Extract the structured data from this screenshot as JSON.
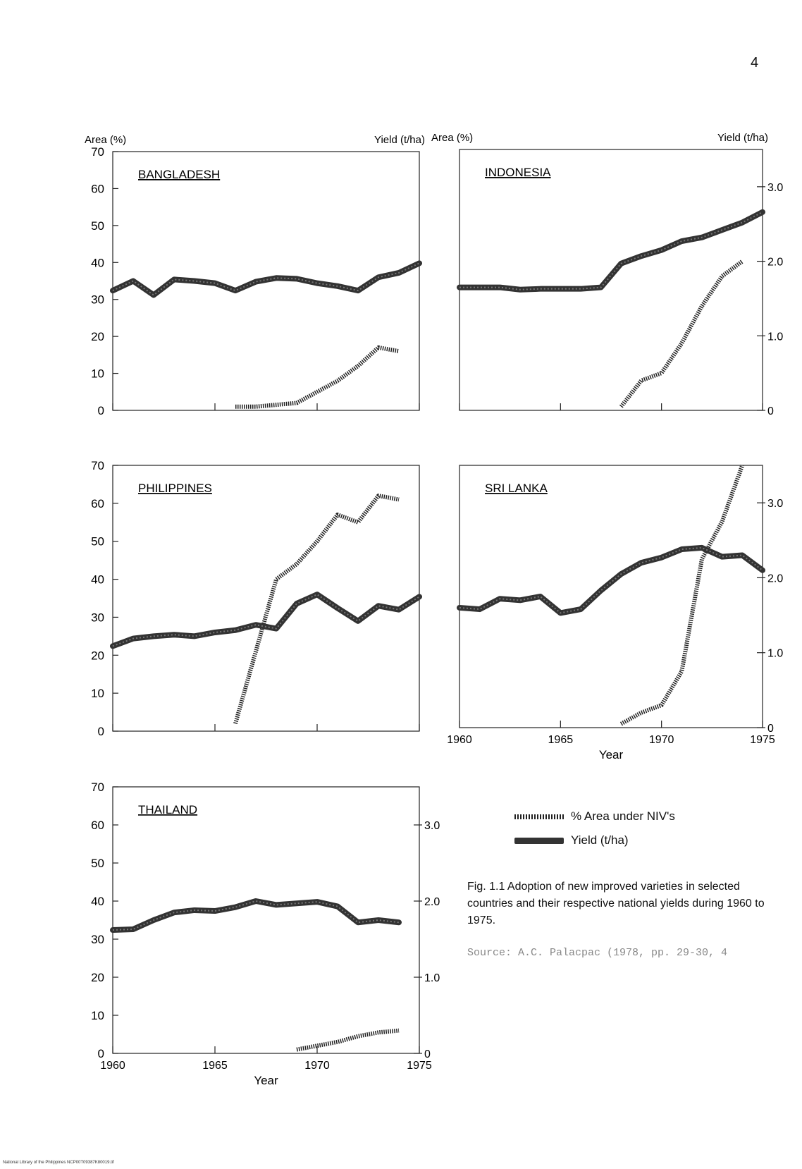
{
  "page_number": "4",
  "legend": {
    "area_label": "% Area under NIV's",
    "yield_label": "Yield (t/ha)"
  },
  "caption": "Fig. 1.1 Adoption of new improved varieties in selected countries and their respective national yields during 1960 to 1975.",
  "source": "Source: A.C. Palacpac (1978, pp. 29-30, 4",
  "footer": "National Library of the Philippines    NCP00T09387K80019.tif",
  "chart_data": [
    {
      "type": "line",
      "title": "BANGLADESH",
      "left_axis_title": "Area (%)",
      "right_axis_title": "Yield (t/ha)",
      "xlim": [
        1960,
        1975
      ],
      "ylim_left": [
        0,
        70
      ],
      "ylim_right": [
        0,
        3.5
      ],
      "left_ticks": [
        0,
        10,
        20,
        30,
        40,
        50,
        60,
        70
      ],
      "right_ticks": [],
      "x_tick_labels": [],
      "xlabel": "",
      "series": [
        {
          "name": "% Area under NIV's",
          "axis": "left",
          "style": "area",
          "x": [
            1966,
            1967,
            1968,
            1969,
            1970,
            1971,
            1972,
            1973,
            1974
          ],
          "y": [
            1,
            1,
            1.5,
            2,
            5,
            8,
            12,
            17,
            16
          ]
        },
        {
          "name": "Yield (t/ha)",
          "axis": "right",
          "style": "yield",
          "x": [
            1960,
            1961,
            1962,
            1963,
            1964,
            1965,
            1966,
            1967,
            1968,
            1969,
            1970,
            1971,
            1972,
            1973,
            1974,
            1975
          ],
          "y": [
            1.62,
            1.75,
            1.56,
            1.77,
            1.75,
            1.72,
            1.62,
            1.74,
            1.79,
            1.78,
            1.72,
            1.68,
            1.62,
            1.8,
            1.86,
            1.99
          ]
        }
      ]
    },
    {
      "type": "line",
      "title": "INDONESIA",
      "left_axis_title": "Area (%)",
      "right_axis_title": "Yield (t/ha)",
      "xlim": [
        1960,
        1975
      ],
      "ylim_left": [
        0,
        70
      ],
      "ylim_right": [
        0,
        3.5
      ],
      "left_ticks": [],
      "right_ticks": [
        0,
        1.0,
        2.0,
        3.0
      ],
      "x_tick_labels": [],
      "xlabel": "",
      "series": [
        {
          "name": "% Area under NIV's",
          "axis": "left",
          "style": "area",
          "x": [
            1968,
            1969,
            1970,
            1971,
            1972,
            1973,
            1974
          ],
          "y": [
            1,
            8,
            10,
            18,
            28,
            36,
            40
          ]
        },
        {
          "name": "Yield (t/ha)",
          "axis": "right",
          "style": "yield",
          "x": [
            1960,
            1961,
            1962,
            1963,
            1964,
            1965,
            1966,
            1967,
            1968,
            1969,
            1970,
            1971,
            1972,
            1973,
            1974,
            1975
          ],
          "y": [
            1.65,
            1.65,
            1.65,
            1.62,
            1.63,
            1.63,
            1.63,
            1.65,
            1.97,
            2.07,
            2.15,
            2.27,
            2.32,
            2.42,
            2.52,
            2.66
          ]
        }
      ]
    },
    {
      "type": "line",
      "title": "PHILIPPINES",
      "left_axis_title": "",
      "right_axis_title": "",
      "xlim": [
        1960,
        1975
      ],
      "ylim_left": [
        0,
        70
      ],
      "ylim_right": [
        0,
        3.5
      ],
      "left_ticks": [
        0,
        10,
        20,
        30,
        40,
        50,
        60,
        70
      ],
      "right_ticks": [],
      "x_tick_labels": [],
      "xlabel": "",
      "series": [
        {
          "name": "% Area under NIV's",
          "axis": "left",
          "style": "area",
          "x": [
            1966,
            1967,
            1968,
            1969,
            1970,
            1971,
            1972,
            1973,
            1974
          ],
          "y": [
            2,
            21,
            40,
            44,
            50,
            57,
            55,
            62,
            61
          ]
        },
        {
          "name": "Yield (t/ha)",
          "axis": "right",
          "style": "yield",
          "x": [
            1960,
            1961,
            1962,
            1963,
            1964,
            1965,
            1966,
            1967,
            1968,
            1969,
            1970,
            1971,
            1972,
            1973,
            1974,
            1975
          ],
          "y": [
            1.12,
            1.22,
            1.25,
            1.27,
            1.25,
            1.3,
            1.33,
            1.4,
            1.35,
            1.68,
            1.8,
            1.62,
            1.45,
            1.65,
            1.6,
            1.77
          ]
        }
      ]
    },
    {
      "type": "line",
      "title": "SRI LANKA",
      "left_axis_title": "",
      "right_axis_title": "",
      "xlim": [
        1960,
        1975
      ],
      "ylim_left": [
        0,
        70
      ],
      "ylim_right": [
        0,
        3.5
      ],
      "left_ticks": [],
      "right_ticks": [
        0,
        1.0,
        2.0,
        3.0
      ],
      "x_tick_labels": [
        "1960",
        "1965",
        "1970",
        "1975"
      ],
      "xlabel": "Year",
      "series": [
        {
          "name": "% Area under NIV's",
          "axis": "left",
          "style": "area",
          "x": [
            1968,
            1969,
            1970,
            1971,
            1972,
            1973,
            1974
          ],
          "y": [
            1,
            4,
            6,
            15,
            45,
            55,
            70
          ]
        },
        {
          "name": "Yield (t/ha)",
          "axis": "right",
          "style": "yield",
          "x": [
            1960,
            1961,
            1962,
            1963,
            1964,
            1965,
            1966,
            1967,
            1968,
            1969,
            1970,
            1971,
            1972,
            1973,
            1974,
            1975
          ],
          "y": [
            1.6,
            1.58,
            1.72,
            1.7,
            1.75,
            1.53,
            1.58,
            1.83,
            2.05,
            2.2,
            2.27,
            2.38,
            2.4,
            2.28,
            2.3,
            2.1
          ]
        }
      ]
    },
    {
      "type": "line",
      "title": "THAILAND",
      "left_axis_title": "",
      "right_axis_title": "",
      "xlim": [
        1960,
        1975
      ],
      "ylim_left": [
        0,
        70
      ],
      "ylim_right": [
        0,
        3.5
      ],
      "left_ticks": [
        0,
        10,
        20,
        30,
        40,
        50,
        60,
        70
      ],
      "right_ticks": [
        0,
        1.0,
        2.0,
        3.0
      ],
      "x_tick_labels": [
        "1960",
        "1965",
        "1970",
        "1975"
      ],
      "xlabel": "Year",
      "series": [
        {
          "name": "% Area under NIV's",
          "axis": "left",
          "style": "area",
          "x": [
            1969,
            1970,
            1971,
            1972,
            1973,
            1974
          ],
          "y": [
            1,
            2,
            3,
            4.5,
            5.5,
            6
          ]
        },
        {
          "name": "Yield (t/ha)",
          "axis": "right",
          "style": "yield",
          "x": [
            1960,
            1961,
            1962,
            1963,
            1964,
            1965,
            1966,
            1967,
            1968,
            1969,
            1970,
            1971,
            1972,
            1973,
            1974
          ],
          "y": [
            1.62,
            1.63,
            1.75,
            1.85,
            1.88,
            1.87,
            1.92,
            2.0,
            1.95,
            1.97,
            1.99,
            1.93,
            1.72,
            1.75,
            1.72
          ]
        }
      ]
    }
  ]
}
